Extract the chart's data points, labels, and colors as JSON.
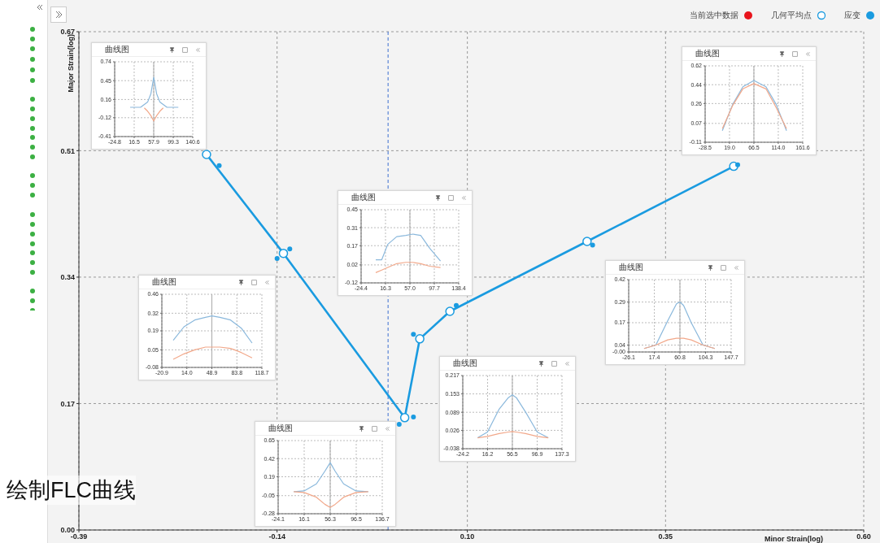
{
  "chart_data": [
    {
      "type": "line",
      "ylabel": "Major Strain(log)",
      "xlabel": "Minor Strain(log)",
      "xlim": [
        -0.39,
        0.6
      ],
      "xticks": [
        -0.39,
        -0.14,
        {
          "value": 0.1,
          "label": "0.10"
        },
        0.35,
        {
          "value": 0.6,
          "label": "0.60"
        }
      ],
      "ylim": [
        0,
        0.67
      ],
      "yticks": [
        {
          "value": 0,
          "label": "0.00"
        },
        0.17,
        0.34,
        0.51,
        0.67
      ],
      "grid": true,
      "legend": "top right",
      "marker": "circle",
      "line_style": "solid",
      "ref_lines": [
        {
          "axis": "x",
          "value": 0,
          "color": "#3c6fd0",
          "line_style": "dashed"
        }
      ],
      "annotations": [
        "绘制FLC曲线"
      ],
      "series": [
        {
          "name": "当前选中数据",
          "type": "scatter",
          "color": "#e8141c"
        },
        {
          "name": "几何平均点",
          "type": "line",
          "color": "#1a9be0",
          "x": [
            -0.229,
            -0.132,
            0.021,
            0.04,
            0.078,
            0.251,
            0.436
          ],
          "values": [
            0.505,
            0.372,
            0.151,
            0.257,
            0.294,
            0.388,
            0.489
          ]
        },
        {
          "name": "应变",
          "type": "scatter",
          "color": "#1a9be0",
          "x": [
            -0.213,
            -0.14,
            -0.124,
            0.014,
            0.032,
            0.032,
            0.086,
            0.258,
            0.441
          ],
          "values": [
            0.49,
            0.365,
            0.378,
            0.142,
            0.152,
            0.263,
            0.302,
            0.383,
            0.491
          ]
        }
      ]
    },
    {
      "type": "line",
      "title": "曲线图",
      "xlim": [
        -24.8,
        140.6
      ],
      "xticks": [
        -24.8,
        16.5,
        57.9,
        99.3,
        140.6
      ],
      "ylim": [
        -0.41,
        0.74
      ],
      "yticks": [
        -0.41,
        -0.12,
        0.16,
        0.45,
        0.74
      ],
      "grid": true,
      "ref_lines": [
        {
          "axis": "x",
          "value": 57.9,
          "color": "#aaaaaa"
        }
      ],
      "series": [
        {
          "color": "#8ab8dc",
          "x": [
            8,
            30,
            45,
            52,
            57.9,
            64,
            71,
            86,
            110
          ],
          "values": [
            0.04,
            0.04,
            0.12,
            0.25,
            0.5,
            0.25,
            0.12,
            0.04,
            0.04
          ]
        },
        {
          "color": "#f2a88a",
          "x": [
            38,
            45,
            52,
            57.9,
            64,
            71,
            78
          ],
          "values": [
            0.03,
            -0.02,
            -0.09,
            -0.17,
            -0.09,
            -0.02,
            0.03
          ]
        }
      ]
    },
    {
      "type": "line",
      "title": "曲线图",
      "xlim": [
        -28.5,
        161.6
      ],
      "xticks": [
        -28.5,
        {
          "value": 19,
          "label": "19.0"
        },
        66.5,
        {
          "value": 114,
          "label": "114.0"
        },
        161.6
      ],
      "ylim": [
        -0.11,
        0.62
      ],
      "yticks": [
        -0.11,
        0.07,
        0.26,
        0.44,
        0.62
      ],
      "grid": true,
      "ref_lines": [
        {
          "axis": "x",
          "value": 66.5,
          "color": "#aaaaaa"
        }
      ],
      "series": [
        {
          "color": "#8ab8dc",
          "x": [
            5,
            25,
            45,
            66.5,
            90,
            110,
            130
          ],
          "values": [
            0.0,
            0.25,
            0.42,
            0.48,
            0.42,
            0.25,
            0.0
          ]
        },
        {
          "color": "#f2a88a",
          "x": [
            5,
            25,
            45,
            66.5,
            90,
            110,
            130
          ],
          "values": [
            0.02,
            0.24,
            0.4,
            0.45,
            0.4,
            0.22,
            0.02
          ]
        }
      ]
    },
    {
      "type": "line",
      "title": "曲线图",
      "xlim": [
        -24.4,
        138.4
      ],
      "xticks": [
        -24.4,
        16.3,
        {
          "value": 57,
          "label": "57.0"
        },
        97.7,
        138.4
      ],
      "ylim": [
        -0.12,
        0.45
      ],
      "yticks": [
        -0.12,
        0.02,
        0.17,
        0.31,
        0.45
      ],
      "grid": true,
      "ref_lines": [
        {
          "axis": "x",
          "value": 57.0,
          "color": "#aaaaaa"
        }
      ],
      "series": [
        {
          "color": "#8ab8dc",
          "x": [
            0,
            10,
            20,
            35,
            50,
            62,
            75,
            90,
            108
          ],
          "values": [
            0.06,
            0.06,
            0.18,
            0.24,
            0.25,
            0.26,
            0.25,
            0.15,
            0.05
          ]
        },
        {
          "color": "#f2a88a",
          "x": [
            0,
            10,
            20,
            35,
            50,
            62,
            75,
            90,
            108
          ],
          "values": [
            -0.04,
            -0.02,
            0.0,
            0.03,
            0.04,
            0.04,
            0.03,
            0.01,
            0.0
          ]
        }
      ]
    },
    {
      "type": "line",
      "title": "曲线图",
      "xlim": [
        -20.9,
        118.7
      ],
      "xticks": [
        -20.9,
        {
          "value": 14,
          "label": "14.0"
        },
        48.9,
        83.8,
        118.7
      ],
      "ylim": [
        -0.08,
        0.46
      ],
      "yticks": [
        -0.08,
        0.05,
        0.19,
        0.32,
        0.46
      ],
      "grid": true,
      "ref_lines": [
        {
          "axis": "x",
          "value": 48.9,
          "color": "#aaaaaa"
        }
      ],
      "series": [
        {
          "color": "#8ab8dc",
          "x": [
            -5,
            10,
            25,
            40,
            48.9,
            60,
            75,
            90,
            105
          ],
          "values": [
            0.12,
            0.22,
            0.27,
            0.29,
            0.3,
            0.29,
            0.27,
            0.21,
            0.1
          ]
        },
        {
          "color": "#f2a88a",
          "x": [
            -5,
            10,
            25,
            40,
            48.9,
            60,
            75,
            90,
            105
          ],
          "values": [
            -0.02,
            0.02,
            0.05,
            0.07,
            0.07,
            0.07,
            0.06,
            0.03,
            -0.01
          ]
        }
      ]
    },
    {
      "type": "line",
      "title": "曲线图",
      "xlim": [
        -26.1,
        147.7
      ],
      "xticks": [
        -26.1,
        17.4,
        60.8,
        104.3,
        147.7
      ],
      "ylim": [
        0,
        0.42
      ],
      "yticks": [
        {
          "value": 0,
          "label": "-0.00"
        },
        0.04,
        0.17,
        0.29,
        0.42
      ],
      "grid": true,
      "ref_lines": [
        {
          "axis": "x",
          "value": 60.8,
          "color": "#aaaaaa"
        }
      ],
      "series": [
        {
          "color": "#8ab8dc",
          "x": [
            0,
            20,
            40,
            55,
            60.8,
            67,
            80,
            100,
            120
          ],
          "values": [
            0.02,
            0.04,
            0.18,
            0.28,
            0.29,
            0.27,
            0.17,
            0.04,
            0.02
          ]
        },
        {
          "color": "#f2a88a",
          "x": [
            0,
            20,
            40,
            55,
            60.8,
            67,
            80,
            100,
            120
          ],
          "values": [
            0.02,
            0.04,
            0.07,
            0.08,
            0.08,
            0.08,
            0.07,
            0.04,
            0.02
          ]
        }
      ]
    },
    {
      "type": "line",
      "title": "曲线图",
      "xlim": [
        -24.2,
        137.3
      ],
      "xticks": [
        -24.2,
        16.2,
        56.5,
        96.9,
        137.3
      ],
      "ylim": [
        -0.038,
        0.217
      ],
      "yticks": [
        -0.038,
        0.026,
        0.089,
        0.153,
        0.217
      ],
      "grid": true,
      "ref_lines": [
        {
          "axis": "x",
          "value": 56.5,
          "color": "#aaaaaa"
        }
      ],
      "series": [
        {
          "color": "#8ab8dc",
          "x": [
            0,
            16,
            35,
            50,
            56.5,
            63,
            78,
            97,
            115
          ],
          "values": [
            0.0,
            0.02,
            0.1,
            0.14,
            0.15,
            0.14,
            0.09,
            0.02,
            0.0
          ]
        },
        {
          "color": "#f2a88a",
          "x": [
            0,
            16,
            35,
            50,
            56.5,
            63,
            78,
            97,
            115
          ],
          "values": [
            0.0,
            0.005,
            0.015,
            0.02,
            0.022,
            0.02,
            0.015,
            0.005,
            0.0
          ]
        }
      ]
    },
    {
      "type": "line",
      "title": "曲线图",
      "xlim": [
        -24.1,
        136.7
      ],
      "xticks": [
        -24.1,
        16.1,
        56.3,
        96.5,
        136.7
      ],
      "ylim": [
        -0.28,
        0.65
      ],
      "yticks": [
        -0.28,
        -0.05,
        0.19,
        0.42,
        0.65
      ],
      "grid": true,
      "ref_lines": [
        {
          "axis": "x",
          "value": 56.3,
          "color": "#aaaaaa"
        }
      ],
      "series": [
        {
          "color": "#8ab8dc",
          "x": [
            0,
            16,
            35,
            48,
            56.3,
            64,
            77,
            96,
            115
          ],
          "values": [
            0.0,
            0.01,
            0.1,
            0.26,
            0.37,
            0.26,
            0.1,
            0.01,
            0.0
          ]
        },
        {
          "color": "#f2a88a",
          "x": [
            0,
            16,
            35,
            48,
            56.3,
            64,
            77,
            96,
            115
          ],
          "values": [
            0.0,
            -0.01,
            -0.07,
            -0.16,
            -0.2,
            -0.16,
            -0.07,
            -0.01,
            0.0
          ]
        }
      ]
    }
  ]
}
